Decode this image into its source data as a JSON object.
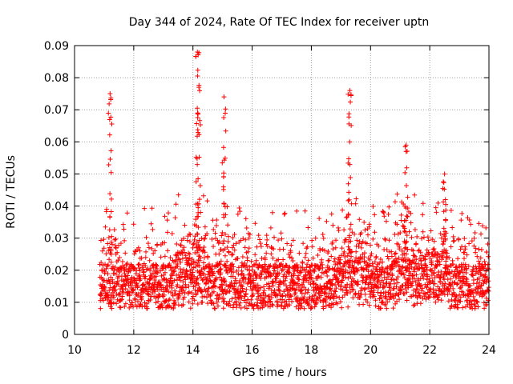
{
  "chart_data": {
    "type": "scatter",
    "title": "Day 344 of 2024, Rate Of TEC Index for receiver uptn",
    "xlabel": "GPS time / hours",
    "ylabel": "ROTI / TECUs",
    "xlim": [
      10,
      24
    ],
    "ylim": [
      0,
      0.09
    ],
    "x_ticks": [
      10,
      12,
      14,
      16,
      18,
      20,
      22,
      24
    ],
    "x_tick_labels": [
      "10",
      "12",
      "14",
      "16",
      "18",
      "20",
      "22",
      "24"
    ],
    "y_ticks": [
      0,
      0.01,
      0.02,
      0.03,
      0.04,
      0.05,
      0.06,
      0.07,
      0.08,
      0.09
    ],
    "y_tick_labels": [
      "0",
      "0.01",
      "0.02",
      "0.03",
      "0.04",
      "0.05",
      "0.06",
      "0.07",
      "0.08",
      "0.09"
    ],
    "grid": true,
    "marker": "+",
    "color": "#ff0000",
    "series": [
      {
        "name": "ROTI",
        "data_range_x": [
          10.85,
          24.0
        ],
        "notable_peaks": [
          {
            "x": 11.2,
            "y": 0.075
          },
          {
            "x": 14.15,
            "y": 0.088
          },
          {
            "x": 14.2,
            "y": 0.077
          },
          {
            "x": 15.05,
            "y": 0.074
          },
          {
            "x": 19.3,
            "y": 0.076
          },
          {
            "x": 21.2,
            "y": 0.059
          },
          {
            "x": 22.5,
            "y": 0.05
          }
        ]
      }
    ]
  }
}
